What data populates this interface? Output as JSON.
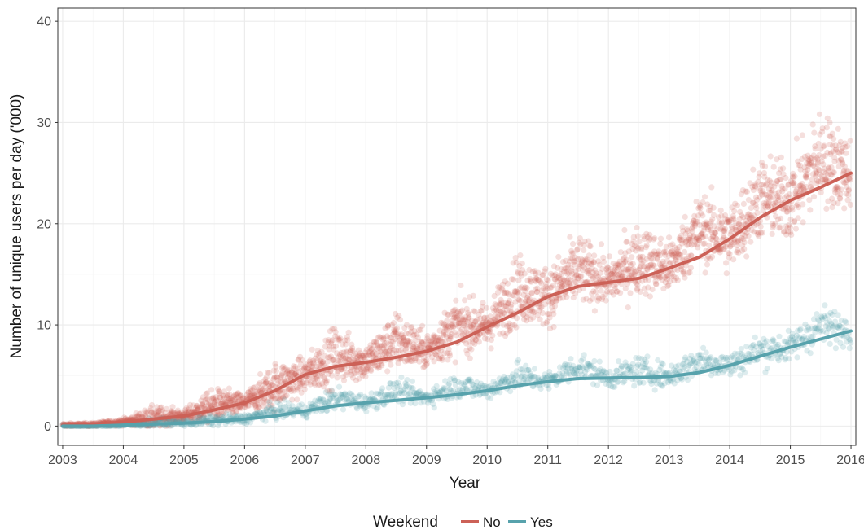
{
  "chart_data": {
    "type": "scatter",
    "title": "",
    "xlabel": "Year",
    "ylabel": "Number of unique users per day ('000)",
    "xlim": [
      2002.92,
      2016.08
    ],
    "ylim": [
      -1.9,
      41.3
    ],
    "x_ticks": [
      "2003",
      "2004",
      "2005",
      "2006",
      "2007",
      "2008",
      "2009",
      "2010",
      "2011",
      "2012",
      "2013",
      "2014",
      "2015",
      "2016"
    ],
    "y_ticks": [
      "0",
      "10",
      "20",
      "30",
      "40"
    ],
    "grid": true,
    "legend": {
      "title": "Weekend",
      "position": "bottom",
      "entries": [
        "No",
        "Yes"
      ]
    },
    "series": [
      {
        "name": "No",
        "color": "#CC6157",
        "smooth": {
          "x": [
            2003.0,
            2003.5,
            2004.0,
            2004.5,
            2005.0,
            2005.5,
            2006.0,
            2006.5,
            2007.0,
            2007.5,
            2008.0,
            2008.5,
            2009.0,
            2009.5,
            2010.0,
            2010.5,
            2011.0,
            2011.5,
            2012.0,
            2012.5,
            2013.0,
            2013.5,
            2014.0,
            2014.5,
            2015.0,
            2015.5,
            2016.0
          ],
          "y": [
            0.1,
            0.15,
            0.4,
            0.7,
            1.0,
            1.6,
            2.3,
            3.5,
            5.1,
            5.9,
            6.3,
            6.8,
            7.4,
            8.3,
            9.8,
            11.2,
            12.8,
            13.8,
            14.2,
            14.6,
            15.6,
            16.7,
            18.5,
            20.6,
            22.3,
            23.6,
            25.0
          ]
        },
        "scatter_summary": {
          "x": [
            2003.0,
            2003.5,
            2004.0,
            2004.5,
            2005.0,
            2005.5,
            2006.0,
            2006.5,
            2007.0,
            2007.5,
            2008.0,
            2008.5,
            2009.0,
            2009.5,
            2010.0,
            2010.5,
            2011.0,
            2011.5,
            2012.0,
            2012.5,
            2013.0,
            2013.5,
            2014.0,
            2014.5,
            2015.0,
            2015.5,
            2016.0
          ],
          "y": [
            0.1,
            0.15,
            0.4,
            0.8,
            1.0,
            2.0,
            2.3,
            4.0,
            5.0,
            7.0,
            6.3,
            8.5,
            7.4,
            10.0,
            9.8,
            13.5,
            12.8,
            15.5,
            14.2,
            16.5,
            15.6,
            19.5,
            18.5,
            22.5,
            22.3,
            26.5,
            25.0
          ],
          "spread": [
            0.15,
            0.15,
            0.3,
            1.0,
            0.5,
            1.5,
            0.8,
            2.0,
            1.5,
            2.5,
            1.5,
            2.5,
            1.5,
            2.5,
            2.0,
            3.0,
            2.5,
            3.0,
            2.0,
            3.0,
            2.5,
            3.0,
            3.0,
            3.5,
            3.5,
            4.0,
            3.5
          ]
        }
      },
      {
        "name": "Yes",
        "color": "#57A2AC",
        "smooth": {
          "x": [
            2003.0,
            2003.5,
            2004.0,
            2004.5,
            2005.0,
            2005.5,
            2006.0,
            2006.5,
            2007.0,
            2007.5,
            2008.0,
            2008.5,
            2009.0,
            2009.5,
            2010.0,
            2010.5,
            2011.0,
            2011.5,
            2012.0,
            2012.5,
            2013.0,
            2013.5,
            2014.0,
            2014.5,
            2015.0,
            2015.5,
            2016.0
          ],
          "y": [
            0.0,
            0.0,
            0.1,
            0.2,
            0.3,
            0.45,
            0.7,
            1.0,
            1.5,
            2.0,
            2.3,
            2.55,
            2.8,
            3.1,
            3.5,
            4.0,
            4.4,
            4.7,
            4.75,
            4.8,
            4.9,
            5.3,
            6.0,
            6.9,
            7.8,
            8.6,
            9.4
          ]
        },
        "scatter_summary": {
          "x": [
            2003.0,
            2003.5,
            2004.0,
            2004.5,
            2005.0,
            2005.5,
            2006.0,
            2006.5,
            2007.0,
            2007.5,
            2008.0,
            2008.5,
            2009.0,
            2009.5,
            2010.0,
            2010.5,
            2011.0,
            2011.5,
            2012.0,
            2012.5,
            2013.0,
            2013.5,
            2014.0,
            2014.5,
            2015.0,
            2015.5,
            2016.0
          ],
          "y": [
            0.0,
            0.0,
            0.1,
            0.3,
            0.3,
            0.6,
            0.7,
            1.5,
            1.5,
            2.8,
            2.3,
            3.5,
            2.8,
            4.0,
            3.5,
            5.0,
            4.4,
            6.0,
            4.75,
            5.5,
            4.9,
            6.5,
            6.0,
            7.5,
            7.8,
            10.0,
            9.4
          ],
          "spread": [
            0.1,
            0.1,
            0.15,
            0.4,
            0.3,
            0.5,
            0.4,
            0.7,
            0.6,
            1.0,
            0.7,
            1.0,
            0.8,
            1.1,
            0.8,
            1.2,
            0.9,
            1.3,
            0.9,
            1.3,
            1.0,
            1.4,
            1.1,
            1.5,
            1.3,
            1.8,
            1.3
          ]
        }
      }
    ]
  }
}
